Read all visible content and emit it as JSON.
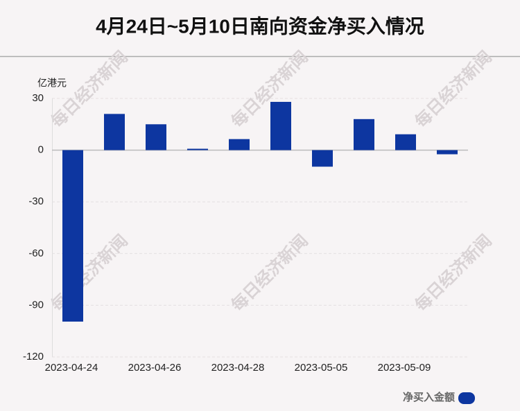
{
  "chart_data": {
    "type": "bar",
    "title": "4月24日~5月10日南向资金净买入情况",
    "y_unit": "亿港元",
    "watermark": "每日经济新闻",
    "categories": [
      "2023-04-24",
      null,
      "2023-04-26",
      null,
      "2023-04-28",
      null,
      "2023-05-05",
      null,
      "2023-05-09",
      null
    ],
    "series": [
      {
        "name": "净买入金额",
        "color": "#0d36a0",
        "values": [
          -99.5,
          21,
          15,
          0.8,
          6.4,
          28,
          -9.6,
          18,
          9.2,
          -2.4
        ]
      }
    ],
    "ylim": [
      -120,
      30
    ],
    "yticks": [
      -120,
      -90,
      -60,
      -30,
      0,
      30
    ],
    "grid": true
  }
}
